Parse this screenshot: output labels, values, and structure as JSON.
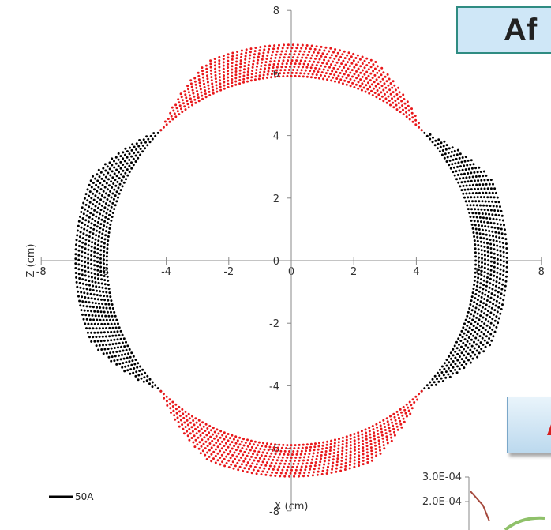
{
  "title_fragment": "Af",
  "chart_data": {
    "type": "scatter",
    "xlabel": "X (cm)",
    "ylabel": "Z (cm)",
    "xlim": [
      -8,
      8
    ],
    "ylim": [
      -8,
      8
    ],
    "x_ticks": [
      "-8",
      "-6",
      "-4",
      "-2",
      "0",
      "2",
      "4",
      "6",
      "8"
    ],
    "y_ticks": [
      "-8",
      "-6",
      "-4",
      "-2",
      "0",
      "2",
      "4",
      "6",
      "8"
    ],
    "grid": false,
    "series": [
      {
        "color": "#000000",
        "arc_centers_deg": [
          0,
          180
        ],
        "half_span_deg": 45,
        "radius_range": [
          5.9,
          6.9
        ]
      },
      {
        "color": "#e8181b",
        "arc_centers_deg": [
          90,
          270
        ],
        "half_span_deg": 45,
        "radius_range": [
          5.9,
          6.9
        ]
      }
    ],
    "legend": [
      {
        "name": "50A",
        "color": "#000000"
      }
    ]
  },
  "inset": {
    "y_ticks": [
      "3.0E-04",
      "2.0E-04"
    ]
  }
}
